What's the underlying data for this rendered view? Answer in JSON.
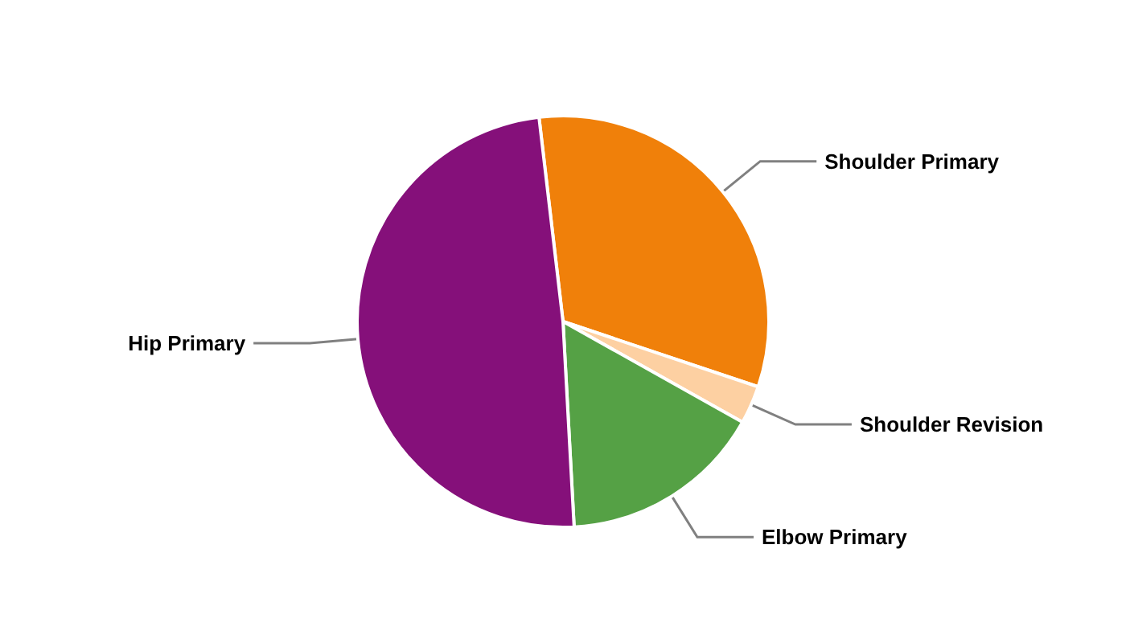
{
  "chart_data": {
    "type": "pie",
    "categories": [
      "Shoulder Primary",
      "Shoulder Revision",
      "Elbow Primary",
      "Hip Primary"
    ],
    "values": [
      32,
      3,
      16,
      49
    ],
    "colors": [
      "#f0800a",
      "#fdd0a2",
      "#55a145",
      "#85107a"
    ]
  }
}
